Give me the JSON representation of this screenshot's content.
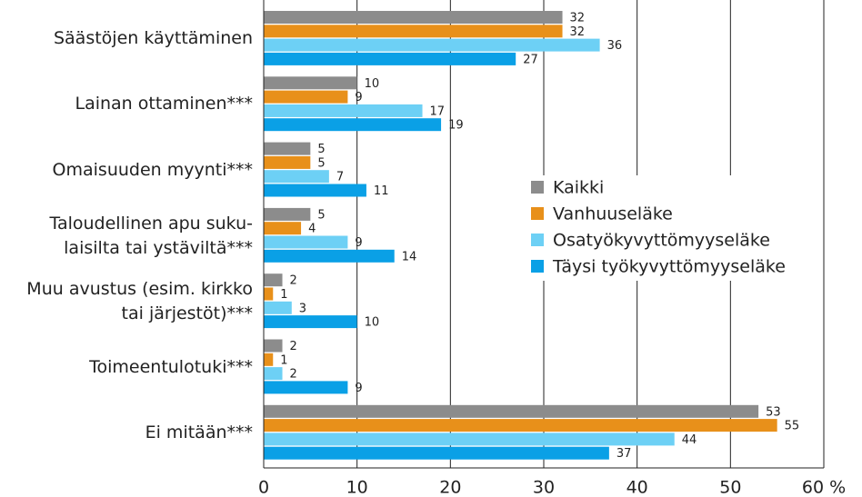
{
  "chart_data": {
    "type": "hbar",
    "categories": [
      "Säästöjen käyttäminen",
      "Lainan ottaminen***",
      "Omaisuuden myynti***",
      "Taloudellinen apu suku-\nlaisilta tai ystäviltä***",
      "Muu avustus (esim. kirkko\ntai järjestöt)***",
      "Toimeentulotuki***",
      "Ei mitään***"
    ],
    "series": [
      {
        "name": "Kaikki",
        "color": "#8c8c8c",
        "values": [
          32,
          10,
          5,
          5,
          2,
          2,
          53
        ]
      },
      {
        "name": "Vanhuuseläke",
        "color": "#e8901a",
        "values": [
          32,
          9,
          5,
          4,
          1,
          1,
          55
        ]
      },
      {
        "name": "Osatyökyvyttömyyseläke",
        "color": "#6dd0f5",
        "values": [
          36,
          17,
          7,
          9,
          3,
          2,
          44
        ]
      },
      {
        "name": "Täysi työkyvyttömyyseläke",
        "color": "#0aa0e6",
        "values": [
          27,
          19,
          11,
          14,
          10,
          9,
          37
        ]
      }
    ],
    "xlim": [
      0,
      60
    ],
    "xticks": [
      0,
      10,
      20,
      30,
      40,
      50,
      {
        "value": 60,
        "label": "60 %"
      }
    ],
    "grid": true
  }
}
